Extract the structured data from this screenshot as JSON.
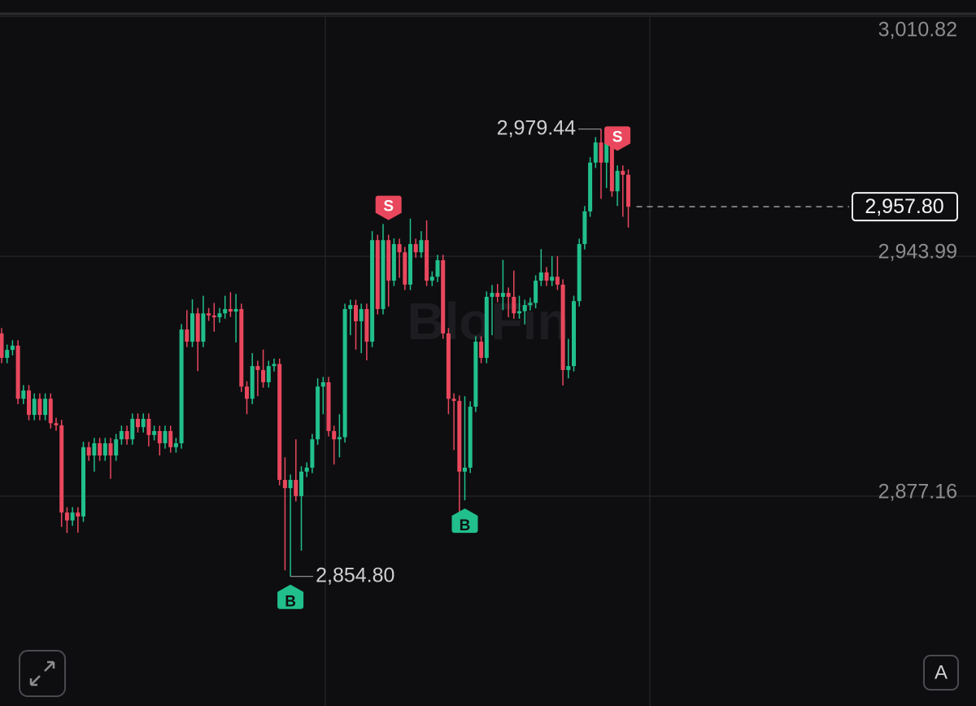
{
  "chart_data": {
    "type": "candlestick",
    "watermark": "BloFin",
    "up_color": "#21bf8b",
    "down_color": "#e9475d",
    "ylim": [
      2818.7,
      3015.4
    ],
    "yticks": [
      {
        "value": 3010.82,
        "label": "3,010.82"
      },
      {
        "value": 2943.99,
        "label": "2,943.99"
      },
      {
        "value": 2877.16,
        "label": "2,877.16"
      }
    ],
    "grid": true,
    "open": [
      2922.5,
      2915.7,
      2917.9,
      2919.1,
      2904.3,
      2906.6,
      2899.8,
      2904.3,
      2899.8,
      2904.3,
      2897.5,
      2896.9,
      2872.6,
      2870.4,
      2872.6,
      2871.5,
      2890.8,
      2888.5,
      2891.9,
      2888.5,
      2891.9,
      2888.5,
      2893.0,
      2895.3,
      2893.0,
      2898.7,
      2896.4,
      2898.7,
      2894.2,
      2895.3,
      2891.9,
      2895.3,
      2890.8,
      2891.9,
      2923.6,
      2920.2,
      2928.1,
      2920.2,
      2928.1,
      2927.5,
      2927.0,
      2928.1,
      2929.3,
      2928.6,
      2929.3,
      2907.7,
      2904.3,
      2913.4,
      2912.3,
      2908.9,
      2913.4,
      2914.0,
      2881.7,
      2879.4,
      2881.7,
      2877.2,
      2884.0,
      2885.1,
      2893.0,
      2907.7,
      2908.9,
      2895.3,
      2893.0,
      2893.6,
      2929.3,
      2930.4,
      2925.9,
      2929.3,
      2920.2,
      2948.5,
      2929.3,
      2948.5,
      2937.2,
      2947.4,
      2945.1,
      2936.1,
      2947.4,
      2945.1,
      2948.5,
      2937.2,
      2938.3,
      2942.9,
      2922.5,
      2904.3,
      2903.7,
      2884.0,
      2885.1,
      2902.1,
      2920.2,
      2915.7,
      2932.7,
      2933.8,
      2932.7,
      2933.8,
      2932.7,
      2928.1,
      2928.7,
      2930.4,
      2931.0,
      2937.2,
      2939.5,
      2937.2,
      2938.3,
      2936.1,
      2912.3,
      2913.4,
      2931.5,
      2947.4,
      2956.5,
      2970.1,
      2975.7,
      2970.1,
      2975.7,
      2962.1,
      2967.8,
      2966.7
    ],
    "high": [
      2924.0,
      2919.4,
      2920.6,
      2920.6,
      2908.1,
      2908.1,
      2905.8,
      2905.8,
      2905.8,
      2905.8,
      2899.0,
      2898.4,
      2874.1,
      2874.1,
      2874.1,
      2892.3,
      2892.3,
      2893.4,
      2893.4,
      2893.4,
      2893.4,
      2894.5,
      2896.8,
      2896.8,
      2900.2,
      2900.2,
      2900.2,
      2900.2,
      2896.8,
      2896.8,
      2896.8,
      2896.8,
      2893.4,
      2925.1,
      2929.0,
      2932.0,
      2929.6,
      2933.0,
      2929.6,
      2931.0,
      2929.6,
      2933.0,
      2934.0,
      2933.5,
      2930.8,
      2909.2,
      2917.0,
      2914.9,
      2918.0,
      2914.9,
      2915.5,
      2915.5,
      2888.0,
      2883.2,
      2893.0,
      2885.5,
      2886.6,
      2894.5,
      2910.0,
      2910.4,
      2910.4,
      2896.8,
      2900.0,
      2930.8,
      2931.9,
      2931.9,
      2930.8,
      2930.8,
      2951.0,
      2950.0,
      2953.0,
      2950.0,
      2949.0,
      2948.9,
      2946.6,
      2954.5,
      2948.9,
      2951.0,
      2954.0,
      2939.8,
      2944.4,
      2944.4,
      2924.0,
      2905.8,
      2905.2,
      2905.0,
      2903.6,
      2921.7,
      2921.7,
      2934.2,
      2936.0,
      2936.3,
      2943.0,
      2935.3,
      2940.0,
      2933.0,
      2931.9,
      2932.5,
      2938.7,
      2946.0,
      2941.0,
      2944.0,
      2944.0,
      2937.6,
      2921.0,
      2933.0,
      2948.9,
      2958.0,
      2971.6,
      2977.2,
      2979.44,
      2978.0,
      2977.2,
      2969.3,
      2969.3,
      2968.2
    ],
    "low": [
      2914.2,
      2914.2,
      2916.4,
      2902.8,
      2902.8,
      2898.3,
      2898.3,
      2898.3,
      2898.3,
      2896.0,
      2895.4,
      2868.6,
      2866.9,
      2868.9,
      2867.0,
      2870.0,
      2887.0,
      2884.0,
      2887.0,
      2887.0,
      2882.0,
      2887.0,
      2891.5,
      2891.5,
      2891.5,
      2894.9,
      2894.9,
      2891.0,
      2892.7,
      2888.5,
      2890.4,
      2889.3,
      2889.3,
      2890.4,
      2918.7,
      2918.7,
      2912.0,
      2918.7,
      2926.0,
      2923.0,
      2925.5,
      2926.6,
      2927.1,
      2920.0,
      2906.2,
      2900.0,
      2902.8,
      2905.0,
      2907.4,
      2907.4,
      2911.9,
      2880.2,
      2856.5,
      2854.8,
      2875.7,
      2862.0,
      2882.5,
      2883.6,
      2891.5,
      2900.0,
      2893.8,
      2886.0,
      2888.0,
      2892.1,
      2922.0,
      2918.0,
      2917.0,
      2915.0,
      2918.7,
      2927.8,
      2927.8,
      2930.0,
      2935.7,
      2938.0,
      2934.6,
      2934.6,
      2943.6,
      2943.6,
      2935.7,
      2935.7,
      2936.8,
      2921.0,
      2900.0,
      2890.0,
      2871.5,
      2876.0,
      2883.6,
      2900.6,
      2914.2,
      2914.2,
      2922.0,
      2931.2,
      2929.0,
      2927.0,
      2926.6,
      2926.6,
      2925.0,
      2928.9,
      2929.5,
      2935.7,
      2935.7,
      2935.7,
      2934.6,
      2908.0,
      2910.0,
      2911.9,
      2930.0,
      2945.9,
      2955.0,
      2968.6,
      2960.0,
      2963.0,
      2960.6,
      2958.0,
      2955.0,
      2952.0
    ],
    "close": [
      2915.7,
      2917.9,
      2919.1,
      2904.3,
      2906.6,
      2899.8,
      2904.3,
      2899.8,
      2904.3,
      2897.5,
      2896.9,
      2872.6,
      2870.4,
      2872.6,
      2871.5,
      2890.8,
      2888.5,
      2891.9,
      2888.5,
      2891.9,
      2888.5,
      2893.0,
      2895.3,
      2893.0,
      2898.7,
      2896.4,
      2898.7,
      2894.2,
      2895.3,
      2891.9,
      2895.3,
      2890.8,
      2891.9,
      2923.6,
      2920.2,
      2928.1,
      2920.2,
      2928.1,
      2927.5,
      2927.0,
      2928.1,
      2929.3,
      2928.6,
      2929.3,
      2907.7,
      2904.3,
      2913.4,
      2912.3,
      2908.9,
      2913.4,
      2914.0,
      2881.7,
      2879.4,
      2881.7,
      2877.2,
      2884.0,
      2885.1,
      2893.0,
      2907.7,
      2908.9,
      2895.3,
      2893.0,
      2893.6,
      2929.3,
      2930.4,
      2925.9,
      2929.3,
      2920.2,
      2948.5,
      2929.3,
      2948.5,
      2937.2,
      2947.4,
      2945.1,
      2936.1,
      2947.4,
      2945.1,
      2948.5,
      2937.2,
      2938.3,
      2942.9,
      2922.5,
      2904.3,
      2903.7,
      2884.0,
      2885.1,
      2902.1,
      2920.2,
      2915.7,
      2932.7,
      2933.8,
      2932.7,
      2933.8,
      2932.7,
      2928.1,
      2928.7,
      2930.4,
      2931.0,
      2937.2,
      2939.5,
      2937.2,
      2938.3,
      2936.1,
      2912.3,
      2913.4,
      2931.5,
      2947.4,
      2956.5,
      2970.1,
      2975.7,
      2970.1,
      2975.7,
      2962.1,
      2967.8,
      2966.7,
      2957.8
    ],
    "signals": [
      null,
      null,
      null,
      null,
      null,
      null,
      null,
      null,
      null,
      null,
      null,
      null,
      null,
      null,
      null,
      null,
      null,
      null,
      null,
      null,
      null,
      null,
      null,
      null,
      null,
      null,
      null,
      null,
      null,
      null,
      null,
      null,
      null,
      null,
      null,
      null,
      null,
      null,
      null,
      null,
      null,
      null,
      null,
      null,
      null,
      null,
      null,
      null,
      null,
      null,
      null,
      null,
      null,
      "B",
      null,
      null,
      null,
      null,
      null,
      null,
      null,
      null,
      null,
      null,
      null,
      null,
      null,
      null,
      null,
      null,
      null,
      "S",
      null,
      null,
      null,
      null,
      null,
      null,
      null,
      null,
      null,
      null,
      null,
      null,
      null,
      "B",
      null,
      null,
      null,
      null,
      null,
      null,
      null,
      null,
      null,
      null,
      null,
      null,
      null,
      null,
      null,
      null,
      null,
      null,
      null,
      null,
      null,
      null,
      null,
      null,
      null,
      null,
      null,
      "S",
      null,
      null
    ],
    "high_label": {
      "value": 2979.44,
      "label": "2,979.44"
    },
    "low_label": {
      "value": 2854.8,
      "label": "2,854.80"
    },
    "last_price": {
      "value": 2957.8,
      "label": "2,957.80"
    },
    "auto_button": "A"
  }
}
